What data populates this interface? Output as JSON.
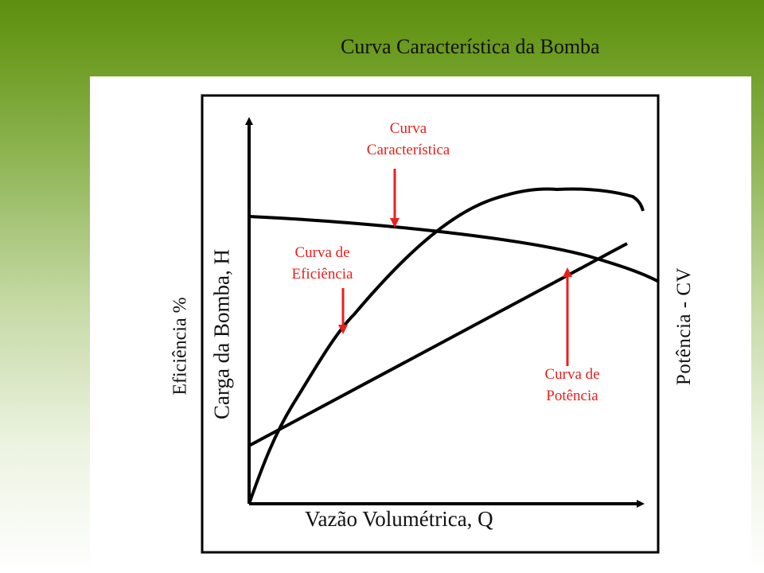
{
  "title": "Curva Característica da Bomba",
  "diagram": {
    "x_axis_label": "Vazão Volumétrica, Q",
    "y_axis_left_outer": "Eficiência %",
    "y_axis_left_inner": "Carga da Bomba, H",
    "y_axis_right": "Potência - CV",
    "annotations": {
      "head_curve_line1": "Curva",
      "head_curve_line2": "Característica",
      "efficiency_curve_line1": "Curva de",
      "efficiency_curve_line2": "Eficiência",
      "power_curve_line1": "Curva de",
      "power_curve_line2": "Potência"
    },
    "colors": {
      "annotation": "#e8201d",
      "curve": "#000000",
      "background_green": "#5e8f10"
    }
  }
}
